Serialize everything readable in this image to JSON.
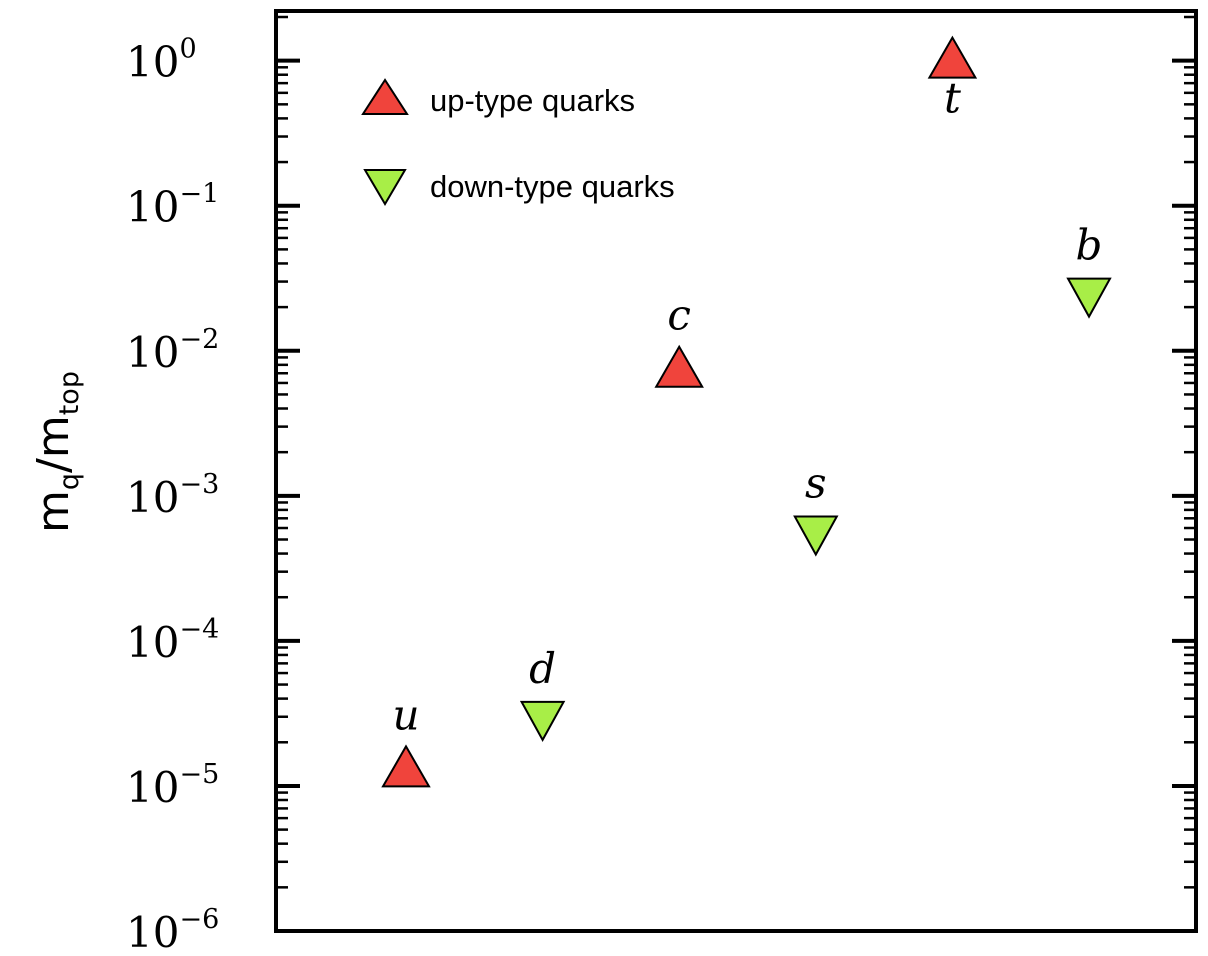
{
  "chart_data": {
    "type": "scatter",
    "title": "",
    "xlabel": "",
    "ylabel": {
      "main": "m",
      "sub1": "q",
      "slash": "/m",
      "sub2": "top"
    },
    "yscale": "log",
    "ylim": [
      1e-06,
      2.2
    ],
    "yticks": [
      {
        "base": "10",
        "exp": "0"
      },
      {
        "base": "10",
        "exp": "−1"
      },
      {
        "base": "10",
        "exp": "−2"
      },
      {
        "base": "10",
        "exp": "−3"
      },
      {
        "base": "10",
        "exp": "−4"
      },
      {
        "base": "10",
        "exp": "−5"
      },
      {
        "base": "10",
        "exp": "−6"
      }
    ],
    "legend_position": "top-left",
    "series": [
      {
        "name": "up-type quarks",
        "marker": "triangle-up",
        "color": "#f0443c",
        "points": [
          {
            "label": "u",
            "order": 1,
            "y": 1.3e-05
          },
          {
            "label": "c",
            "order": 3,
            "y": 0.0074
          },
          {
            "label": "t",
            "order": 5,
            "y": 1.0
          }
        ]
      },
      {
        "name": "down-type quarks",
        "marker": "triangle-down",
        "color": "#a8ee47",
        "points": [
          {
            "label": "d",
            "order": 2,
            "y": 2.9e-05
          },
          {
            "label": "s",
            "order": 4,
            "y": 0.00055
          },
          {
            "label": "b",
            "order": 6,
            "y": 0.024
          }
        ]
      }
    ]
  }
}
